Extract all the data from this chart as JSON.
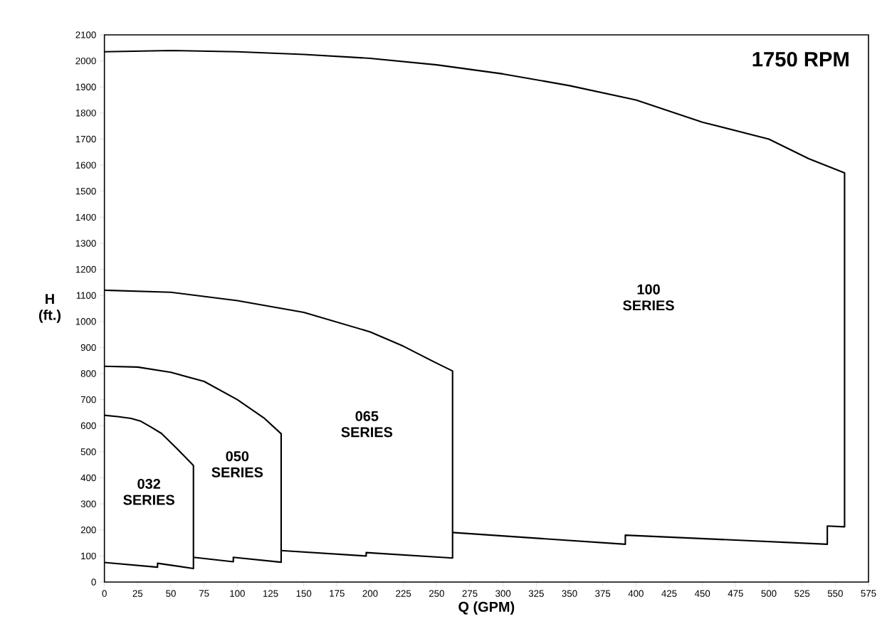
{
  "chart_data": {
    "type": "line",
    "xlabel": "Q (GPM)",
    "ylabel": "H (ft.)",
    "series": [
      {
        "name": "032 SERIES",
        "color": "#000000",
        "x": [
          0,
          10,
          20,
          27,
          35,
          43,
          55,
          67,
          67,
          40,
          40,
          0
        ],
        "values": [
          640,
          635,
          628,
          618,
          595,
          570,
          510,
          447,
          52,
          72,
          57,
          75
        ]
      },
      {
        "name": "050 SERIES",
        "color": "#000000",
        "x": [
          0,
          25,
          50,
          75,
          100,
          120,
          133,
          133,
          97,
          97,
          67
        ],
        "values": [
          828,
          825,
          805,
          770,
          700,
          630,
          569,
          76,
          95,
          78,
          95
        ]
      },
      {
        "name": "065 SERIES",
        "color": "#000000",
        "x": [
          0,
          50,
          100,
          150,
          200,
          225,
          250,
          262,
          262,
          197,
          197,
          133
        ],
        "values": [
          1120,
          1112,
          1080,
          1035,
          960,
          905,
          840,
          810,
          92,
          113,
          100,
          121
        ]
      },
      {
        "name": "100 SERIES",
        "color": "#000000",
        "x": [
          0,
          50,
          100,
          150,
          200,
          250,
          300,
          350,
          400,
          450,
          500,
          530,
          557,
          557,
          544,
          544,
          392,
          392,
          262
        ],
        "values": [
          2035,
          2040,
          2035,
          2025,
          2010,
          1985,
          1950,
          1905,
          1850,
          1765,
          1700,
          1625,
          1570,
          212,
          215,
          145,
          180,
          145,
          190
        ]
      }
    ],
    "annotations": [
      "1750 RPM"
    ],
    "xlim": [
      0,
      575
    ],
    "ylim": [
      0,
      2100
    ],
    "xticks": [
      0,
      25,
      50,
      75,
      100,
      125,
      150,
      175,
      200,
      225,
      250,
      275,
      300,
      325,
      350,
      375,
      400,
      425,
      450,
      475,
      500,
      525,
      550,
      575
    ],
    "yticks": [
      0,
      100,
      200,
      300,
      400,
      500,
      600,
      700,
      800,
      900,
      1000,
      1100,
      1200,
      1300,
      1400,
      1500,
      1600,
      1700,
      1800,
      1900,
      2000,
      2100
    ],
    "grid": false,
    "legend": false,
    "marker": "none",
    "line_style": "solid"
  }
}
